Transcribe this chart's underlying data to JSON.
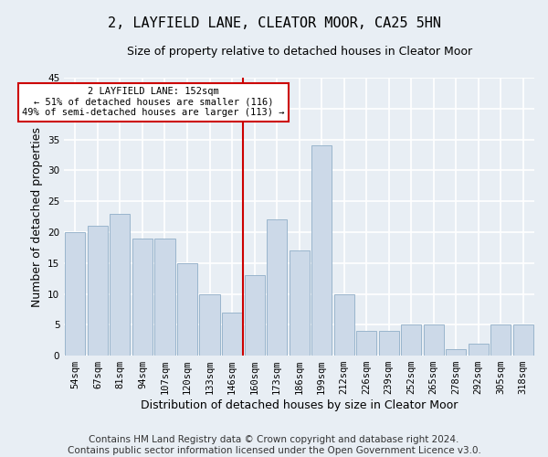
{
  "title": "2, LAYFIELD LANE, CLEATOR MOOR, CA25 5HN",
  "subtitle": "Size of property relative to detached houses in Cleator Moor",
  "xlabel": "Distribution of detached houses by size in Cleator Moor",
  "ylabel": "Number of detached properties",
  "categories": [
    "54sqm",
    "67sqm",
    "81sqm",
    "94sqm",
    "107sqm",
    "120sqm",
    "133sqm",
    "146sqm",
    "160sqm",
    "173sqm",
    "186sqm",
    "199sqm",
    "212sqm",
    "226sqm",
    "239sqm",
    "252sqm",
    "265sqm",
    "278sqm",
    "292sqm",
    "305sqm",
    "318sqm"
  ],
  "values": [
    20,
    21,
    23,
    19,
    19,
    15,
    10,
    7,
    13,
    22,
    17,
    34,
    10,
    4,
    4,
    5,
    5,
    1,
    2,
    5,
    5
  ],
  "bar_color": "#ccd9e8",
  "bar_edge_color": "#9ab5cc",
  "ref_line_index": 7,
  "annotation_text": "2 LAYFIELD LANE: 152sqm\n← 51% of detached houses are smaller (116)\n49% of semi-detached houses are larger (113) →",
  "annotation_box_color": "#ffffff",
  "annotation_box_edge": "#cc0000",
  "ref_line_color": "#cc0000",
  "ylim": [
    0,
    45
  ],
  "yticks": [
    0,
    5,
    10,
    15,
    20,
    25,
    30,
    35,
    40,
    45
  ],
  "footer": "Contains HM Land Registry data © Crown copyright and database right 2024.\nContains public sector information licensed under the Open Government Licence v3.0.",
  "background_color": "#e8eef4",
  "plot_background": "#e8eef4",
  "grid_color": "#ffffff",
  "title_fontsize": 11,
  "subtitle_fontsize": 9,
  "label_fontsize": 9,
  "tick_fontsize": 7.5,
  "footer_fontsize": 7.5
}
